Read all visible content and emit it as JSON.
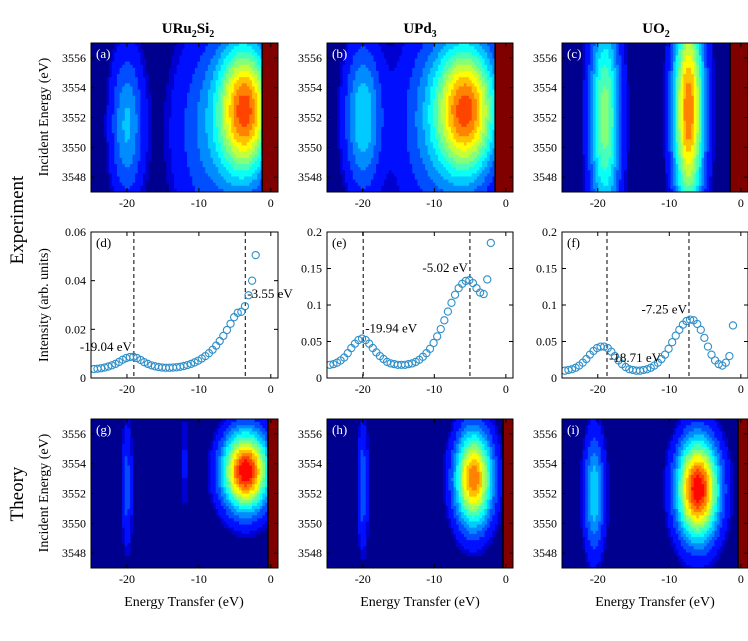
{
  "figure": {
    "column_titles": [
      {
        "base": "URu",
        "sub1": "2",
        "mid": "Si",
        "sub2": "2"
      },
      {
        "base": "UPd",
        "sub1": "3",
        "mid": "",
        "sub2": ""
      },
      {
        "base": "UO",
        "sub1": "2",
        "mid": "",
        "sub2": ""
      }
    ],
    "row_labels": {
      "experiment": "Experiment",
      "theory": "Theory"
    },
    "ylabel_map": "Incident Energy (eV)",
    "ylabel_cut": "Intensity (arb. units)",
    "xlabel": "Energy Transfer (eV)",
    "colors": {
      "map_background": "#00008f",
      "map_max": "#800000",
      "marker": "#2e8fc9",
      "frame": "#000000"
    }
  },
  "chart_data": [
    {
      "id": "a",
      "panel_label": "(a)",
      "type": "heatmap",
      "row": "Experiment",
      "material": "URu2Si2",
      "xlim": [
        -25,
        1
      ],
      "ylim": [
        3547,
        3557
      ],
      "xticks": [
        -20,
        -10,
        0
      ],
      "xtick_labels": [
        "-20",
        "-10",
        "0"
      ],
      "yticks": [
        3548,
        3550,
        3552,
        3554,
        3556
      ],
      "ytick_labels": [
        "3548",
        "3550",
        "3552",
        "3554",
        "3556"
      ],
      "features": [
        {
          "center_x": -3.5,
          "center_y": 3552.5,
          "sigma_x": 2.6,
          "sigma_y": 3.2,
          "amp": 0.85
        },
        {
          "center_x": -20,
          "center_y": 3551.5,
          "sigma_x": 1.6,
          "sigma_y": 3.5,
          "amp": 0.3
        },
        {
          "center_x": -9,
          "center_y": 3551,
          "sigma_x": 3.5,
          "sigma_y": 5,
          "amp": 0.2
        }
      ],
      "elastic_edge_x": -1.2
    },
    {
      "id": "b",
      "panel_label": "(b)",
      "type": "heatmap",
      "row": "Experiment",
      "material": "UPd3",
      "xlim": [
        -25,
        1
      ],
      "ylim": [
        3547,
        3557
      ],
      "xticks": [
        -20,
        -10,
        0
      ],
      "xtick_labels": [
        "-20",
        "-10",
        "0"
      ],
      "yticks": [
        3548,
        3550,
        3552,
        3554,
        3556
      ],
      "ytick_labels": [
        "3548",
        "3550",
        "3552",
        "3554",
        "3556"
      ],
      "features": [
        {
          "center_x": -5.5,
          "center_y": 3552.5,
          "sigma_x": 3.0,
          "sigma_y": 3.2,
          "amp": 0.85
        },
        {
          "center_x": -20,
          "center_y": 3552,
          "sigma_x": 1.8,
          "sigma_y": 3.5,
          "amp": 0.35
        },
        {
          "center_x": -11,
          "center_y": 3551.5,
          "sigma_x": 3.5,
          "sigma_y": 5,
          "amp": 0.18
        }
      ],
      "elastic_edge_x": -1.5
    },
    {
      "id": "c",
      "panel_label": "(c)",
      "type": "heatmap",
      "row": "Experiment",
      "material": "UO2",
      "xlim": [
        -25,
        1
      ],
      "ylim": [
        3547,
        3557
      ],
      "xticks": [
        -20,
        -10,
        0
      ],
      "xtick_labels": [
        "-20",
        "-10",
        "0"
      ],
      "yticks": [
        3548,
        3550,
        3552,
        3554,
        3556
      ],
      "ytick_labels": [
        "3548",
        "3550",
        "3552",
        "3554",
        "3556"
      ],
      "features": [
        {
          "center_x": -7.3,
          "center_y": 3552.5,
          "sigma_x": 1.5,
          "sigma_y": 5,
          "amp": 0.85
        },
        {
          "center_x": -19,
          "center_y": 3552,
          "sigma_x": 1.5,
          "sigma_y": 5,
          "amp": 0.55
        }
      ],
      "elastic_edge_x": -1.5
    },
    {
      "id": "d",
      "panel_label": "(d)",
      "type": "scatter",
      "row": "Experiment",
      "material": "URu2Si2",
      "xlim": [
        -25,
        1
      ],
      "ylim": [
        0,
        0.06
      ],
      "xticks": [
        -20,
        -10,
        0
      ],
      "xtick_labels": [
        "-20",
        "-10",
        "0"
      ],
      "yticks": [
        0,
        0.02,
        0.04,
        0.06
      ],
      "ytick_labels": [
        "0",
        "0.02",
        "0.04",
        "0.06"
      ],
      "peaks": [
        {
          "x": -19.04,
          "label": "-19.04 eV",
          "anchor": "right",
          "dy": -6
        },
        {
          "x": -3.55,
          "label": "-3.55 eV",
          "anchor": "left",
          "dy": -8
        }
      ],
      "vlines": [
        -19.04,
        -3.55
      ],
      "points_x": [
        -24.6,
        -24.1,
        -23.6,
        -23.1,
        -22.6,
        -22.1,
        -21.6,
        -21.1,
        -20.6,
        -20.1,
        -19.6,
        -19.1,
        -18.6,
        -18.1,
        -17.6,
        -17.1,
        -16.6,
        -16.1,
        -15.6,
        -15.1,
        -14.6,
        -14.1,
        -13.6,
        -13.1,
        -12.6,
        -12.1,
        -11.6,
        -11.1,
        -10.6,
        -10.1,
        -9.6,
        -9.1,
        -8.6,
        -8.1,
        -7.6,
        -7.1,
        -6.6,
        -6.1,
        -5.6,
        -5.1,
        -4.6,
        -4.1,
        -3.6,
        -3.1,
        -2.6,
        -2.1
      ],
      "points_y": [
        0.0037,
        0.0038,
        0.004,
        0.0043,
        0.0047,
        0.0052,
        0.0058,
        0.0066,
        0.0075,
        0.0082,
        0.0086,
        0.0087,
        0.0082,
        0.0074,
        0.0065,
        0.0058,
        0.0052,
        0.0048,
        0.0045,
        0.0043,
        0.0042,
        0.0042,
        0.0043,
        0.0044,
        0.0046,
        0.0049,
        0.0053,
        0.0058,
        0.0064,
        0.0071,
        0.008,
        0.009,
        0.0102,
        0.0116,
        0.0133,
        0.0152,
        0.0173,
        0.0197,
        0.0223,
        0.025,
        0.0268,
        0.0272,
        0.0295,
        0.034,
        0.04,
        0.0505
      ]
    },
    {
      "id": "e",
      "panel_label": "(e)",
      "type": "scatter",
      "row": "Experiment",
      "material": "UPd3",
      "xlim": [
        -25,
        1
      ],
      "ylim": [
        0,
        0.2
      ],
      "xticks": [
        -20,
        -10,
        0
      ],
      "xtick_labels": [
        "-20",
        "-10",
        "0"
      ],
      "yticks": [
        0,
        0.05,
        0.1,
        0.15,
        0.2
      ],
      "ytick_labels": [
        "0",
        "0.05",
        "0.1",
        "0.15",
        "0.2"
      ],
      "peaks": [
        {
          "x": -19.94,
          "label": "-19.94 eV",
          "anchor": "left",
          "dy": -6
        },
        {
          "x": -5.02,
          "label": "-5.02 eV",
          "anchor": "right",
          "dy": -8
        }
      ],
      "vlines": [
        -19.94,
        -5.02
      ],
      "points_x": [
        -24.6,
        -24.1,
        -23.6,
        -23.1,
        -22.6,
        -22.1,
        -21.6,
        -21.1,
        -20.6,
        -20.1,
        -19.6,
        -19.1,
        -18.6,
        -18.1,
        -17.6,
        -17.1,
        -16.6,
        -16.1,
        -15.6,
        -15.1,
        -14.6,
        -14.1,
        -13.6,
        -13.1,
        -12.6,
        -12.1,
        -11.6,
        -11.1,
        -10.6,
        -10.1,
        -9.6,
        -9.1,
        -8.6,
        -8.1,
        -7.6,
        -7.1,
        -6.6,
        -6.1,
        -5.6,
        -5.1,
        -4.6,
        -4.1,
        -3.6,
        -3.1,
        -2.6,
        -2.1
      ],
      "points_y": [
        0.018,
        0.019,
        0.021,
        0.024,
        0.028,
        0.034,
        0.041,
        0.047,
        0.052,
        0.054,
        0.052,
        0.047,
        0.041,
        0.035,
        0.03,
        0.026,
        0.022,
        0.02,
        0.019,
        0.018,
        0.018,
        0.018,
        0.019,
        0.02,
        0.022,
        0.025,
        0.029,
        0.034,
        0.04,
        0.048,
        0.057,
        0.067,
        0.079,
        0.091,
        0.103,
        0.114,
        0.123,
        0.129,
        0.133,
        0.134,
        0.13,
        0.123,
        0.117,
        0.115,
        0.135,
        0.185
      ]
    },
    {
      "id": "f",
      "panel_label": "(f)",
      "type": "scatter",
      "row": "Experiment",
      "material": "UO2",
      "xlim": [
        -25,
        1
      ],
      "ylim": [
        0,
        0.2
      ],
      "xticks": [
        -20,
        -10,
        0
      ],
      "xtick_labels": [
        "-20",
        "-10",
        "0"
      ],
      "yticks": [
        0,
        0.05,
        0.1,
        0.15,
        0.2
      ],
      "ytick_labels": [
        "0",
        "0.05",
        "0.1",
        "0.15",
        "0.2"
      ],
      "peaks": [
        {
          "x": -18.71,
          "label": "-18.71 eV",
          "anchor": "left",
          "dy": 14
        },
        {
          "x": -7.25,
          "label": "-7.25 eV",
          "anchor": "right",
          "dy": -6
        }
      ],
      "vlines": [
        -18.71,
        -7.25
      ],
      "points_x": [
        -24.6,
        -24.1,
        -23.6,
        -23.1,
        -22.6,
        -22.1,
        -21.6,
        -21.1,
        -20.6,
        -20.1,
        -19.6,
        -19.1,
        -18.6,
        -18.1,
        -17.6,
        -17.1,
        -16.6,
        -16.1,
        -15.6,
        -15.1,
        -14.6,
        -14.1,
        -13.6,
        -13.1,
        -12.6,
        -12.1,
        -11.6,
        -11.1,
        -10.6,
        -10.1,
        -9.6,
        -9.1,
        -8.6,
        -8.1,
        -7.6,
        -7.1,
        -6.6,
        -6.1,
        -5.6,
        -5.1,
        -4.6,
        -4.1,
        -3.6,
        -3.1,
        -2.6,
        -2.1,
        -1.6,
        -1.1
      ],
      "points_y": [
        0.01,
        0.011,
        0.012,
        0.014,
        0.017,
        0.021,
        0.026,
        0.032,
        0.037,
        0.041,
        0.043,
        0.043,
        0.041,
        0.036,
        0.03,
        0.024,
        0.019,
        0.015,
        0.012,
        0.011,
        0.01,
        0.01,
        0.011,
        0.012,
        0.014,
        0.017,
        0.021,
        0.026,
        0.032,
        0.04,
        0.049,
        0.058,
        0.066,
        0.073,
        0.078,
        0.08,
        0.079,
        0.074,
        0.066,
        0.055,
        0.043,
        0.032,
        0.024,
        0.019,
        0.017,
        0.021,
        0.03,
        0.072
      ]
    },
    {
      "id": "g",
      "panel_label": "(g)",
      "type": "heatmap",
      "row": "Theory",
      "material": "URu2Si2",
      "xlim": [
        -25,
        1
      ],
      "ylim": [
        3547,
        3557
      ],
      "xticks": [
        -20,
        -10,
        0
      ],
      "xtick_labels": [
        "-20",
        "-10",
        "0"
      ],
      "yticks": [
        3548,
        3550,
        3552,
        3554,
        3556
      ],
      "ytick_labels": [
        "3548",
        "3550",
        "3552",
        "3554",
        "3556"
      ],
      "features": [
        {
          "center_x": -3.5,
          "center_y": 3553.5,
          "sigma_x": 2.2,
          "sigma_y": 1.8,
          "amp": 1.0
        },
        {
          "center_x": -20,
          "center_y": 3552.5,
          "sigma_x": 0.5,
          "sigma_y": 3.0,
          "amp": 0.18
        },
        {
          "center_x": -12,
          "center_y": 3554,
          "sigma_x": 0.5,
          "sigma_y": 3.0,
          "amp": 0.08
        }
      ],
      "elastic_edge_x": -0.4
    },
    {
      "id": "h",
      "panel_label": "(h)",
      "type": "heatmap",
      "row": "Theory",
      "material": "UPd3",
      "xlim": [
        -25,
        1
      ],
      "ylim": [
        3547,
        3557
      ],
      "xticks": [
        -20,
        -10,
        0
      ],
      "xtick_labels": [
        "-20",
        "-10",
        "0"
      ],
      "yticks": [
        3548,
        3550,
        3552,
        3554,
        3556
      ],
      "ytick_labels": [
        "3548",
        "3550",
        "3552",
        "3554",
        "3556"
      ],
      "features": [
        {
          "center_x": -4.5,
          "center_y": 3553,
          "sigma_x": 1.8,
          "sigma_y": 2.2,
          "amp": 0.85
        },
        {
          "center_x": -20,
          "center_y": 3552.5,
          "sigma_x": 0.5,
          "sigma_y": 3.0,
          "amp": 0.2
        }
      ],
      "elastic_edge_x": -0.4
    },
    {
      "id": "i",
      "panel_label": "(i)",
      "type": "heatmap",
      "row": "Theory",
      "material": "UO2",
      "xlim": [
        -25,
        1
      ],
      "ylim": [
        3547,
        3557
      ],
      "xticks": [
        -20,
        -10,
        0
      ],
      "xtick_labels": [
        "-20",
        "-10",
        "0"
      ],
      "yticks": [
        3548,
        3550,
        3552,
        3554,
        3556
      ],
      "ytick_labels": [
        "3548",
        "3550",
        "3552",
        "3554",
        "3556"
      ],
      "features": [
        {
          "center_x": -6,
          "center_y": 3552.3,
          "sigma_x": 2.0,
          "sigma_y": 2.3,
          "amp": 1.0
        },
        {
          "center_x": -20.5,
          "center_y": 3552,
          "sigma_x": 1.0,
          "sigma_y": 2.8,
          "amp": 0.35
        }
      ],
      "elastic_edge_x": -0.4
    }
  ]
}
